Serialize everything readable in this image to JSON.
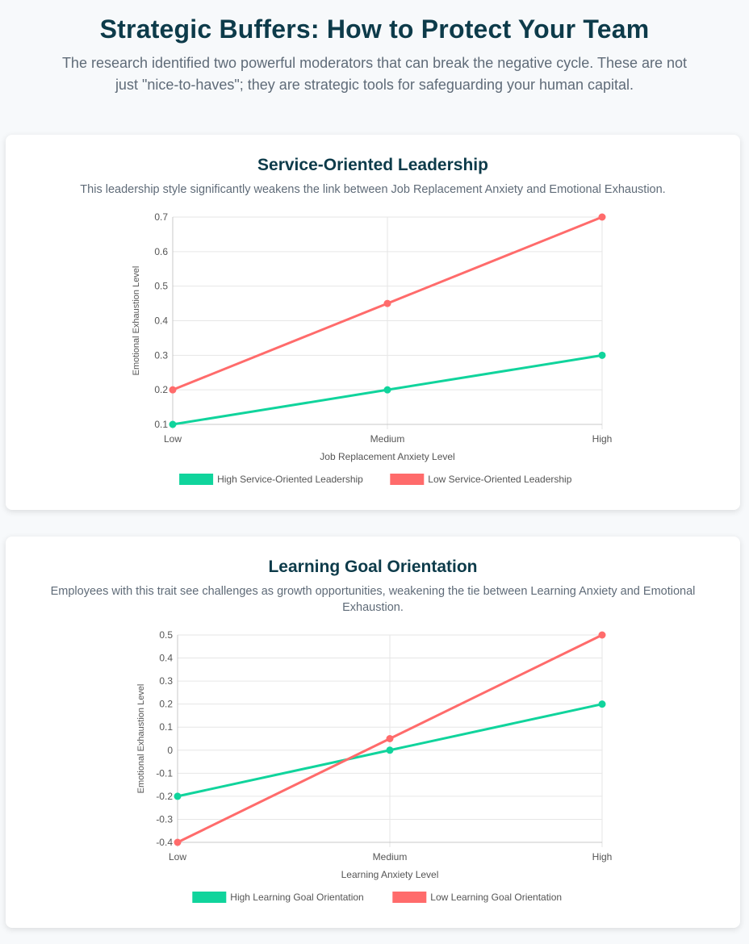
{
  "header": {
    "title": "Strategic Buffers: How to Protect Your Team",
    "subtitle": "The research identified two powerful moderators that can break the negative cycle. These are not just \"nice-to-haves\"; they are strategic tools for safeguarding your human capital."
  },
  "cards": [
    {
      "title": "Service-Oriented Leadership",
      "description": "This leadership style significantly weakens the link between Job Replacement Anxiety and Emotional Exhaustion."
    },
    {
      "title": "Learning Goal Orientation",
      "description": "Employees with this trait see challenges as growth opportunities, weakening the tie between Learning Anxiety and Emotional Exhaustion."
    }
  ],
  "chart_data": [
    {
      "type": "line",
      "categories": [
        "Low",
        "Medium",
        "High"
      ],
      "xlabel": "Job Replacement Anxiety Level",
      "ylabel": "Emotional Exhaustion Level",
      "ylim": [
        0.1,
        0.7
      ],
      "yticks": [
        "0.1",
        "0.2",
        "0.3",
        "0.4",
        "0.5",
        "0.6",
        "0.7"
      ],
      "grid": true,
      "legend_position": "bottom",
      "series": [
        {
          "name": "High Service-Oriented Leadership",
          "values": [
            0.1,
            0.2,
            0.3
          ],
          "color": "#10d49c"
        },
        {
          "name": "Low Service-Oriented Leadership",
          "values": [
            0.2,
            0.45,
            0.7
          ],
          "color": "#ff6b6b"
        }
      ]
    },
    {
      "type": "line",
      "categories": [
        "Low",
        "Medium",
        "High"
      ],
      "xlabel": "Learning Anxiety Level",
      "ylabel": "Emotional Exhaustion Level",
      "ylim": [
        -0.4,
        0.5
      ],
      "yticks": [
        "-0.4",
        "-0.3",
        "-0.2",
        "-0.1",
        "0",
        "0.1",
        "0.2",
        "0.3",
        "0.4",
        "0.5"
      ],
      "grid": true,
      "legend_position": "bottom",
      "series": [
        {
          "name": "High Learning Goal Orientation",
          "values": [
            -0.2,
            0.0,
            0.2
          ],
          "color": "#10d49c"
        },
        {
          "name": "Low Learning Goal Orientation",
          "values": [
            -0.4,
            0.05,
            0.5
          ],
          "color": "#ff6b6b"
        }
      ]
    }
  ]
}
